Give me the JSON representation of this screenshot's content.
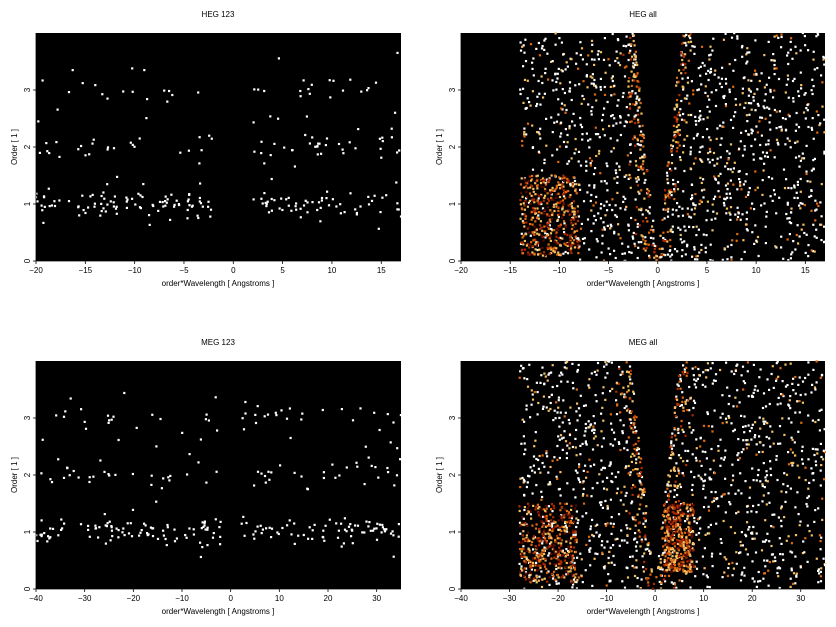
{
  "chart_data": [
    {
      "type": "heatmap",
      "title": "HEG 123",
      "xlabel": "order*Wavelength [ Angstroms ]",
      "ylabel": "Order [ 1 ]",
      "xlim": [
        -20,
        17
      ],
      "ylim": [
        0,
        4
      ],
      "xticks": [
        -20,
        -15,
        -10,
        -5,
        0,
        5,
        10,
        15
      ],
      "yticks": [
        0,
        1,
        2,
        3
      ],
      "colormap": [
        "#000000",
        "#5a0a00",
        "#b02a00",
        "#e06a10",
        "#f5c060",
        "#ffffff"
      ],
      "background": "#000000",
      "pattern": "sparse-orders",
      "point_color": "#ffffff",
      "bands": [
        {
          "order": 1,
          "density": 0.55
        },
        {
          "order": 2,
          "density": 0.2
        },
        {
          "order": 3,
          "density": 0.12
        }
      ],
      "gap": [
        -2,
        2
      ]
    },
    {
      "type": "heatmap",
      "title": "HEG all",
      "xlabel": "order*Wavelength [ Angstroms ]",
      "ylabel": "Order [ 1 ]",
      "xlim": [
        -20,
        17
      ],
      "ylim": [
        0,
        4
      ],
      "xticks": [
        -20,
        -15,
        -10,
        -5,
        0,
        5,
        10,
        15
      ],
      "yticks": [
        0,
        1,
        2,
        3
      ],
      "colormap": [
        "#000000",
        "#5a0a00",
        "#b02a00",
        "#e06a10",
        "#f5c060",
        "#ffffff"
      ],
      "background": "#000000",
      "pattern": "full-field",
      "data_region": [
        -14,
        17
      ],
      "wedge": {
        "apex": [
          0,
          0
        ],
        "left_slope": -0.6,
        "right_slope": 0.6,
        "top_left": -2.4,
        "top_right": 2.4
      },
      "box": {
        "x": [
          -14,
          -8
        ],
        "y": [
          0.1,
          1.5
        ]
      },
      "noise_density": 0.33
    },
    {
      "type": "heatmap",
      "title": "MEG 123",
      "xlabel": "order*Wavelength [ Angstroms ]",
      "ylabel": "Order [ 1 ]",
      "xlim": [
        -40,
        35
      ],
      "ylim": [
        0,
        4
      ],
      "xticks": [
        -40,
        -30,
        -20,
        -10,
        0,
        10,
        20,
        30
      ],
      "yticks": [
        0,
        1,
        2,
        3
      ],
      "colormap": [
        "#000000",
        "#5a0a00",
        "#b02a00",
        "#e06a10",
        "#f5c060",
        "#ffffff"
      ],
      "background": "#000000",
      "pattern": "sparse-orders",
      "point_color": "#ffffff",
      "bands": [
        {
          "order": 1,
          "density": 0.6
        },
        {
          "order": 2,
          "density": 0.18
        },
        {
          "order": 3,
          "density": 0.12
        }
      ],
      "gap": [
        -2,
        2
      ]
    },
    {
      "type": "heatmap",
      "title": "MEG all",
      "xlabel": "order*Wavelength [ Angstroms ]",
      "ylabel": "Order [ 1 ]",
      "xlim": [
        -40,
        35
      ],
      "ylim": [
        0,
        4
      ],
      "xticks": [
        -40,
        -30,
        -20,
        -10,
        0,
        10,
        20,
        30
      ],
      "yticks": [
        0,
        1,
        2,
        3
      ],
      "colormap": [
        "#000000",
        "#5a0a00",
        "#b02a00",
        "#e06a10",
        "#f5c060",
        "#ffffff"
      ],
      "background": "#000000",
      "pattern": "full-field",
      "data_region": [
        -28,
        35
      ],
      "wedge": {
        "apex": [
          0,
          0
        ],
        "left_slope": -1.2,
        "right_slope": 1.2,
        "top_left": -5,
        "top_right": 5
      },
      "box": {
        "x": [
          -28,
          -16
        ],
        "y": [
          0.1,
          1.5
        ]
      },
      "box2": {
        "x": [
          2,
          8
        ],
        "y": [
          0.3,
          1.5
        ]
      },
      "noise_density": 0.33
    }
  ]
}
